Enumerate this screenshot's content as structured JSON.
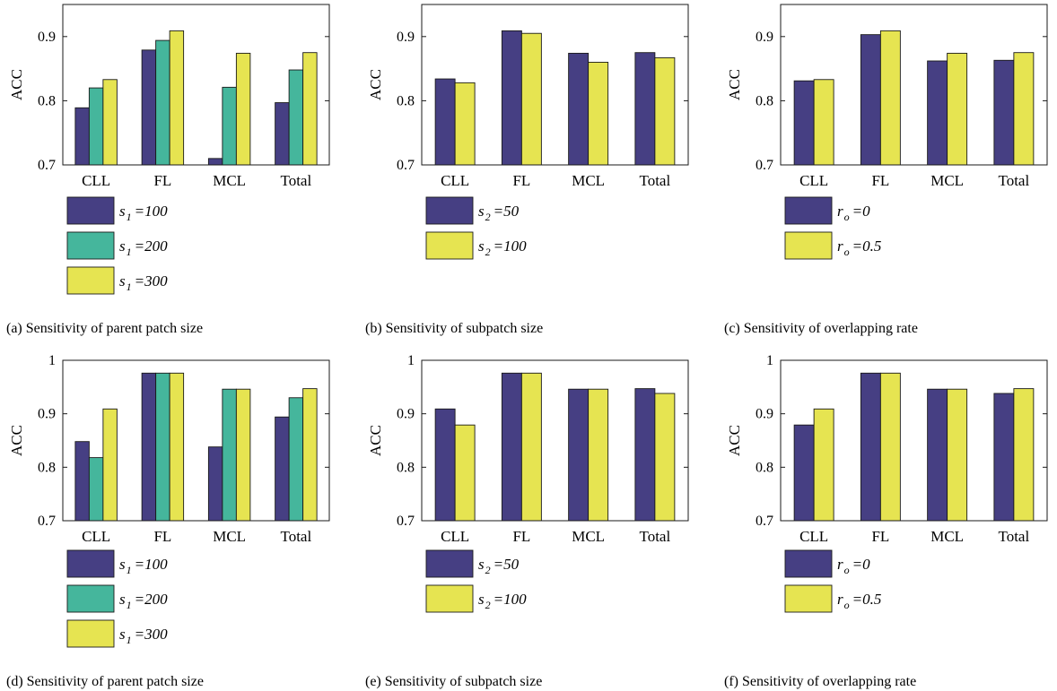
{
  "chart_data": [
    {
      "type": "bar",
      "caption": "(a)  Sensitivity of parent patch size",
      "ylabel": "ACC",
      "ylim": [
        0.7,
        0.95
      ],
      "yticks": [
        "0.7",
        "0.8",
        "0.9"
      ],
      "categories": [
        "CLL",
        "FL",
        "MCL",
        "Total"
      ],
      "series": [
        {
          "name": "s1 =100",
          "sym": "s",
          "sub": "1",
          "val": "=100",
          "color": "#463f83",
          "values": [
            0.789,
            0.879,
            0.71,
            0.797
          ]
        },
        {
          "name": "s1 =200",
          "sym": "s",
          "sub": "1",
          "val": "=200",
          "color": "#45b69c",
          "values": [
            0.82,
            0.894,
            0.821,
            0.848
          ]
        },
        {
          "name": "s1 =300",
          "sym": "s",
          "sub": "1",
          "val": "=300",
          "color": "#e6e451",
          "values": [
            0.833,
            0.909,
            0.874,
            0.875
          ]
        }
      ]
    },
    {
      "type": "bar",
      "caption": "(b)  Sensitivity of subpatch size",
      "ylabel": "ACC",
      "ylim": [
        0.7,
        0.95
      ],
      "yticks": [
        "0.7",
        "0.8",
        "0.9"
      ],
      "categories": [
        "CLL",
        "FL",
        "MCL",
        "Total"
      ],
      "series": [
        {
          "name": "s2 =50",
          "sym": "s",
          "sub": "2",
          "val": "=50",
          "color": "#463f83",
          "values": [
            0.834,
            0.909,
            0.874,
            0.875
          ]
        },
        {
          "name": "s2 =100",
          "sym": "s",
          "sub": "2",
          "val": "=100",
          "color": "#e6e451",
          "values": [
            0.828,
            0.905,
            0.86,
            0.867
          ]
        }
      ]
    },
    {
      "type": "bar",
      "caption": "(c)  Sensitivity of overlapping rate",
      "ylabel": "ACC",
      "ylim": [
        0.7,
        0.95
      ],
      "yticks": [
        "0.7",
        "0.8",
        "0.9"
      ],
      "categories": [
        "CLL",
        "FL",
        "MCL",
        "Total"
      ],
      "series": [
        {
          "name": "ro =0",
          "sym": "r",
          "sub": "o",
          "val": "=0",
          "color": "#463f83",
          "values": [
            0.831,
            0.903,
            0.862,
            0.863
          ]
        },
        {
          "name": "ro =0.5",
          "sym": "r",
          "sub": "o",
          "val": "=0.5",
          "color": "#e6e451",
          "values": [
            0.833,
            0.909,
            0.874,
            0.875
          ]
        }
      ]
    },
    {
      "type": "bar",
      "caption": "(d)  Sensitivity of parent patch size",
      "ylabel": "ACC",
      "ylim": [
        0.7,
        1.0
      ],
      "yticks": [
        "0.7",
        "0.8",
        "0.9",
        "1"
      ],
      "categories": [
        "CLL",
        "FL",
        "MCL",
        "Total"
      ],
      "series": [
        {
          "name": "s1 =100",
          "sym": "s",
          "sub": "1",
          "val": "=100",
          "color": "#463f83",
          "values": [
            0.848,
            0.976,
            0.838,
            0.894
          ]
        },
        {
          "name": "s1 =200",
          "sym": "s",
          "sub": "1",
          "val": "=200",
          "color": "#45b69c",
          "values": [
            0.818,
            0.976,
            0.946,
            0.93
          ]
        },
        {
          "name": "s1 =300",
          "sym": "s",
          "sub": "1",
          "val": "=300",
          "color": "#e6e451",
          "values": [
            0.909,
            0.976,
            0.946,
            0.947
          ]
        }
      ]
    },
    {
      "type": "bar",
      "caption": "(e)  Sensitivity of subpatch size",
      "ylabel": "ACC",
      "ylim": [
        0.7,
        1.0
      ],
      "yticks": [
        "0.7",
        "0.8",
        "0.9",
        "1"
      ],
      "categories": [
        "CLL",
        "FL",
        "MCL",
        "Total"
      ],
      "series": [
        {
          "name": "s2 =50",
          "sym": "s",
          "sub": "2",
          "val": "=50",
          "color": "#463f83",
          "values": [
            0.909,
            0.976,
            0.946,
            0.947
          ]
        },
        {
          "name": "s2 =100",
          "sym": "s",
          "sub": "2",
          "val": "=100",
          "color": "#e6e451",
          "values": [
            0.879,
            0.976,
            0.946,
            0.938
          ]
        }
      ]
    },
    {
      "type": "bar",
      "caption": "(f)  Sensitivity of overlapping rate",
      "ylabel": "ACC",
      "ylim": [
        0.7,
        1.0
      ],
      "yticks": [
        "0.7",
        "0.8",
        "0.9",
        "1"
      ],
      "categories": [
        "CLL",
        "FL",
        "MCL",
        "Total"
      ],
      "series": [
        {
          "name": "ro =0",
          "sym": "r",
          "sub": "o",
          "val": "=0",
          "color": "#463f83",
          "values": [
            0.879,
            0.976,
            0.946,
            0.938
          ]
        },
        {
          "name": "ro =0.5",
          "sym": "r",
          "sub": "o",
          "val": "=0.5",
          "color": "#e6e451",
          "values": [
            0.909,
            0.976,
            0.946,
            0.947
          ]
        }
      ]
    }
  ]
}
